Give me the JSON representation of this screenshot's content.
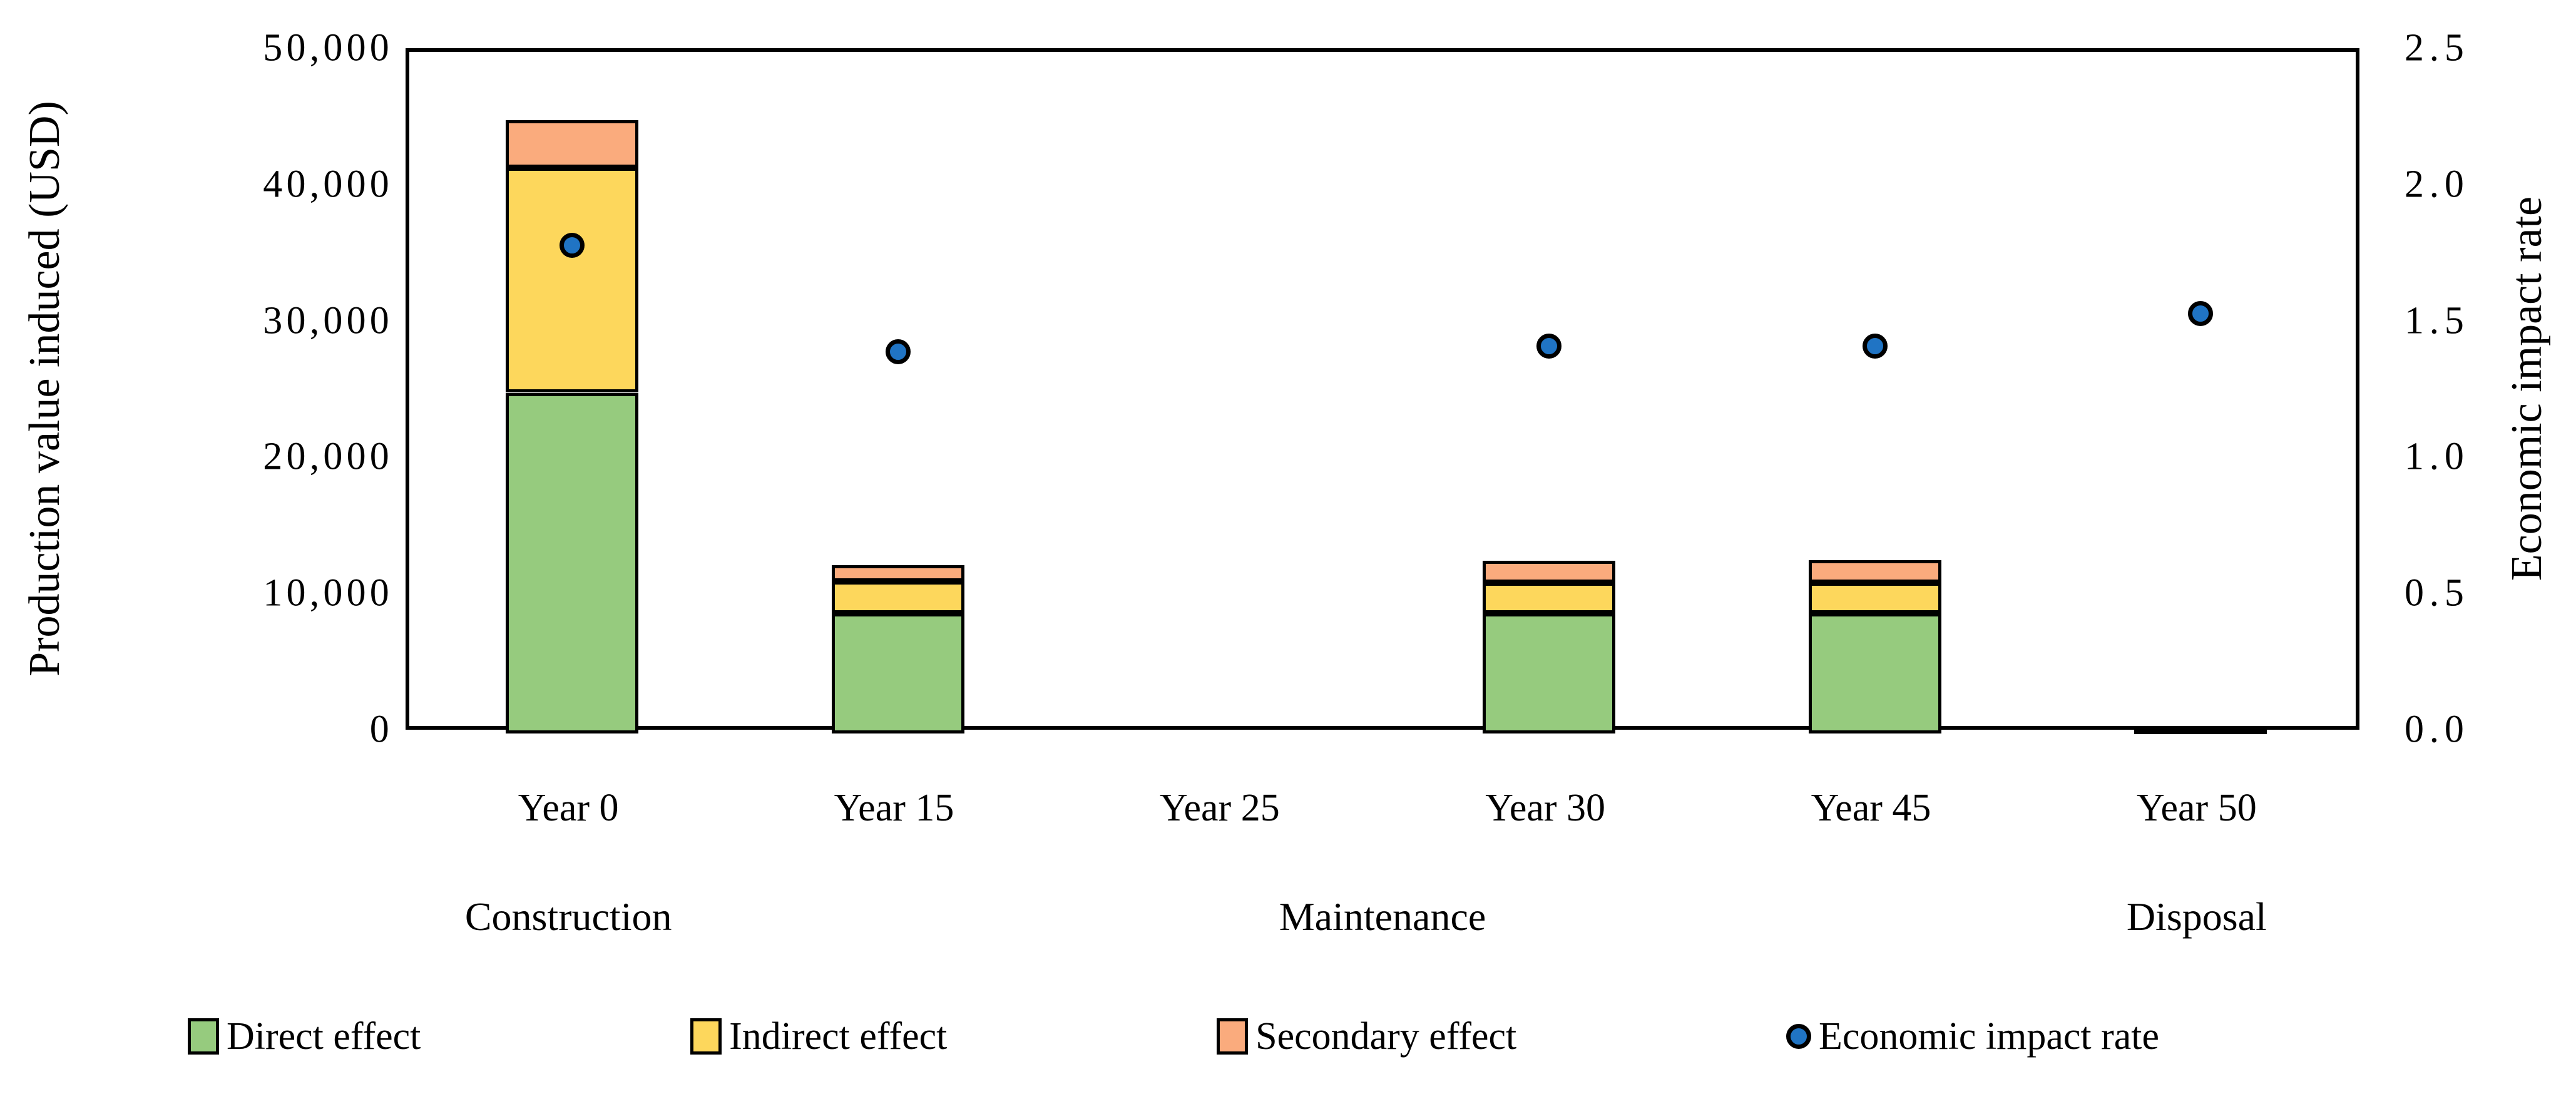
{
  "figure": {
    "background": "#FFFFFF",
    "frame_color": "#000000"
  },
  "chart_data": {
    "type": "bar",
    "subtype": "stacked-bars-with-scatter-overlay-on-secondary-axis",
    "grid": false,
    "legend_position": "bottom",
    "categories": [
      "Year 0",
      "Year 15",
      "Year 25",
      "Year 30",
      "Year 45",
      "Year 50"
    ],
    "series": [
      {
        "name": "Direct effect",
        "color": "#96CB7E",
        "values": [
          25000,
          8800,
          0,
          8800,
          8800,
          0
        ]
      },
      {
        "name": "Indirect effect",
        "color": "#FDD75C",
        "values": [
          16500,
          2350,
          0,
          2250,
          2250,
          0
        ]
      },
      {
        "name": "Secondary effect",
        "color": "#FAAB7D",
        "values": [
          3500,
          1200,
          0,
          1600,
          1650,
          400
        ]
      }
    ],
    "stacked_totals": [
      45000,
      12350,
      0,
      12650,
      12700,
      400
    ],
    "scatter_series": {
      "name": "Economic impact rate",
      "color": "#2074C4",
      "values": [
        1.79,
        1.4,
        null,
        1.42,
        1.42,
        1.54
      ]
    },
    "phases": [
      {
        "label": "Construction",
        "span": [
          0,
          0
        ]
      },
      {
        "label": "Maintenance",
        "span": [
          1,
          4
        ]
      },
      {
        "label": "Disposal",
        "span": [
          5,
          5
        ]
      }
    ],
    "y_left": {
      "label": "Production value induced (USD)",
      "min": 0,
      "max": 50000,
      "step": 10000,
      "tick_values": [
        0,
        10000,
        20000,
        30000,
        40000,
        50000
      ],
      "tick_labels": [
        "0",
        "10,000",
        "20,000",
        "30,000",
        "40,000",
        "50,000"
      ]
    },
    "y_right": {
      "label": "Economic impact rate",
      "min": 0,
      "max": 2.5,
      "step": 0.5,
      "tick_values": [
        0,
        0.5,
        1.0,
        1.5,
        2.0,
        2.5
      ],
      "tick_labels": [
        "0.0",
        "0.5",
        "1.0",
        "1.5",
        "2.0",
        "2.5"
      ]
    },
    "legend": [
      {
        "label": "Direct effect",
        "marker": "square",
        "color": "#96CB7E"
      },
      {
        "label": "Indirect effect",
        "marker": "square",
        "color": "#FDD75C"
      },
      {
        "label": "Secondary effect",
        "marker": "square",
        "color": "#FAAB7D"
      },
      {
        "label": "Economic impact rate",
        "marker": "circle",
        "color": "#2074C4"
      }
    ]
  }
}
